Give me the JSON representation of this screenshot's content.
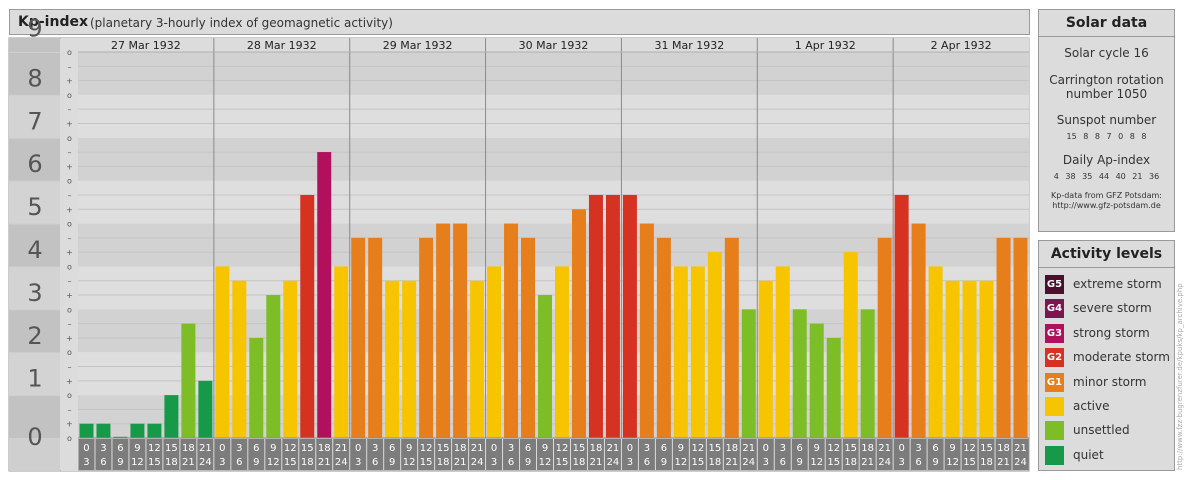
{
  "header": {
    "title": "Kp-index",
    "subtitle": "(planetary 3-hourly index of geomagnetic activity)"
  },
  "chart_data": {
    "type": "bar",
    "ylim": [
      0,
      9
    ],
    "y_ticks": [
      "0",
      "1",
      "2",
      "3",
      "4",
      "5",
      "6",
      "7",
      "8",
      "9"
    ],
    "minor_tick_labels": [
      "–",
      "o",
      "+"
    ],
    "days": [
      {
        "date": "27 Mar 1932",
        "kp": [
          0.333,
          0.333,
          0,
          0.333,
          0.333,
          1.0,
          2.667,
          1.333
        ]
      },
      {
        "date": "28 Mar 1932",
        "kp": [
          4.0,
          3.667,
          2.333,
          3.333,
          3.667,
          5.667,
          6.667,
          4.0
        ]
      },
      {
        "date": "29 Mar 1932",
        "kp": [
          4.667,
          4.667,
          3.667,
          3.667,
          4.667,
          5.0,
          5.0,
          3.667
        ]
      },
      {
        "date": "30 Mar 1932",
        "kp": [
          4.0,
          5.0,
          4.667,
          3.333,
          4.0,
          5.333,
          5.667,
          5.667
        ]
      },
      {
        "date": "31 Mar 1932",
        "kp": [
          5.667,
          5.0,
          4.667,
          4.0,
          4.0,
          4.333,
          4.667,
          3.0
        ]
      },
      {
        "date": "1 Apr 1932",
        "kp": [
          3.667,
          4.0,
          3.0,
          2.667,
          2.333,
          4.333,
          3.0,
          4.667
        ]
      },
      {
        "date": "2 Apr 1932",
        "kp": [
          5.667,
          5.0,
          4.0,
          3.667,
          3.667,
          3.667,
          4.667,
          4.667
        ]
      }
    ],
    "hour_start_labels": [
      "0",
      "3",
      "6",
      "9",
      "12",
      "15",
      "18",
      "21"
    ],
    "hour_end_labels": [
      "3",
      "6",
      "9",
      "12",
      "15",
      "18",
      "21",
      "24"
    ]
  },
  "solar_data": {
    "title": "Solar data",
    "solar_cycle": "Solar cycle 16",
    "carrington_line1": "Carrington rotation",
    "carrington_line2": "number 1050",
    "sunspot_label": "Sunspot number",
    "sunspot_values": "15 8 8 7 0 8 8",
    "ap_label": "Daily Ap-index",
    "ap_values": "4 38 35 44 40 21 36",
    "source_line1": "Kp-data from GFZ Potsdam:",
    "source_line2": "http://www.gfz-potsdam.de"
  },
  "activity_levels": {
    "title": "Activity levels",
    "items": [
      {
        "code": "G5",
        "label": "extreme storm",
        "color": "#4a0f2c"
      },
      {
        "code": "G4",
        "label": "severe storm",
        "color": "#7d1550"
      },
      {
        "code": "G3",
        "label": "strong storm",
        "color": "#b0105c"
      },
      {
        "code": "G2",
        "label": "moderate storm",
        "color": "#d63222"
      },
      {
        "code": "G1",
        "label": "minor storm",
        "color": "#e67e1c"
      },
      {
        "code": "",
        "label": "active",
        "color": "#f7c400"
      },
      {
        "code": "",
        "label": "unsettled",
        "color": "#7dbd26"
      },
      {
        "code": "",
        "label": "quiet",
        "color": "#169a4a"
      }
    ]
  },
  "colors": {
    "quiet": "#169a4a",
    "unsettled": "#7dbd26",
    "active": "#f7c400",
    "g1": "#e67e1c",
    "g2": "#d63222",
    "g3": "#b0105c"
  },
  "credit": "http://www.fzz-bugrenzfurer.de/kpuks/kp_archive.php"
}
